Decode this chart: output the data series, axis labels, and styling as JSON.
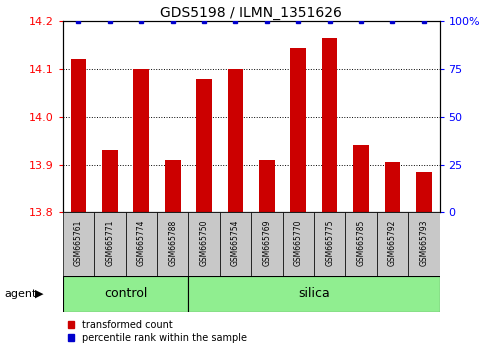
{
  "title": "GDS5198 / ILMN_1351626",
  "samples": [
    "GSM665761",
    "GSM665771",
    "GSM665774",
    "GSM665788",
    "GSM665750",
    "GSM665754",
    "GSM665769",
    "GSM665770",
    "GSM665775",
    "GSM665785",
    "GSM665792",
    "GSM665793"
  ],
  "values": [
    14.12,
    13.93,
    14.1,
    13.91,
    14.08,
    14.1,
    13.91,
    14.145,
    14.165,
    13.94,
    13.905,
    13.885
  ],
  "percentile_values": [
    100,
    100,
    100,
    100,
    100,
    100,
    100,
    100,
    100,
    100,
    100,
    100
  ],
  "ylim_left": [
    13.8,
    14.2
  ],
  "ylim_right": [
    0,
    100
  ],
  "yticks_left": [
    13.8,
    13.9,
    14.0,
    14.1,
    14.2
  ],
  "yticks_right": [
    0,
    25,
    50,
    75,
    100
  ],
  "bar_color": "#CC0000",
  "dot_color": "#0000CC",
  "bar_width": 0.5,
  "n_control": 4,
  "n_silica": 8,
  "control_color": "#90EE90",
  "silica_color": "#90EE90",
  "label_bg_color": "#C8C8C8",
  "agent_label": "agent",
  "control_label": "control",
  "silica_label": "silica",
  "legend_red_label": "transformed count",
  "legend_blue_label": "percentile rank within the sample",
  "background_color": "#ffffff",
  "title_color": "#000000",
  "title_fontsize": 10,
  "tick_fontsize": 8,
  "sample_fontsize": 5.5,
  "group_fontsize": 9,
  "legend_fontsize": 7,
  "agent_fontsize": 8
}
